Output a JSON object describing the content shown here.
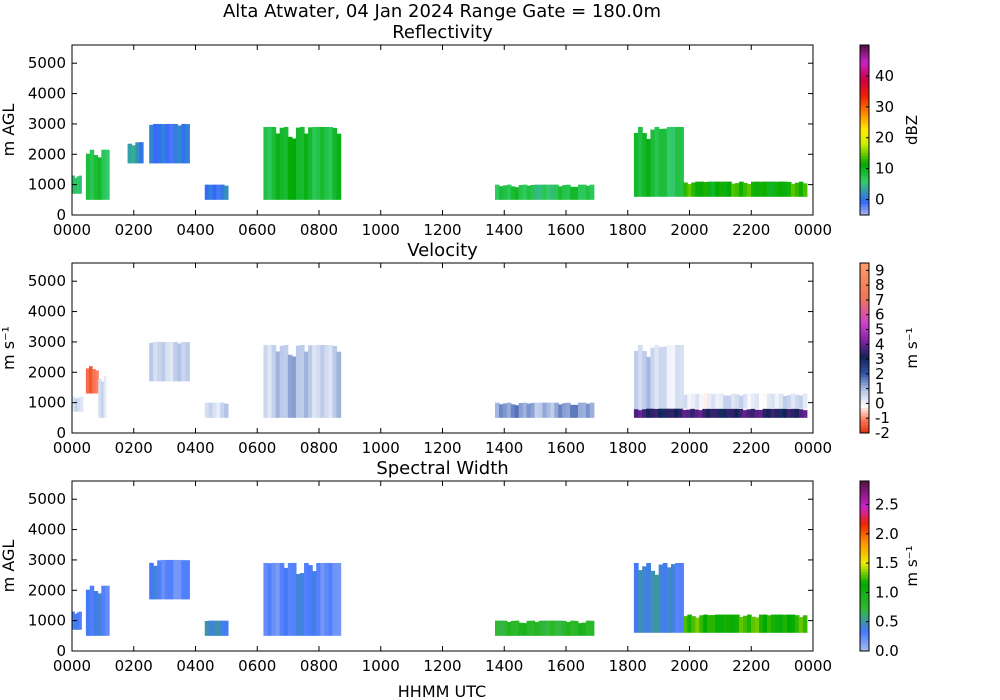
{
  "figure_title": "Alta Atwater, 04 Jan 2024 Range Gate = 180.0m",
  "xlabel": "HHMM UTC",
  "chart_data": [
    {
      "type": "heatmap",
      "title": "Reflectivity",
      "ylabel": "m AGL",
      "xticks": [
        "0000",
        "0200",
        "0400",
        "0600",
        "0800",
        "1000",
        "1200",
        "1400",
        "1600",
        "1800",
        "2000",
        "2200",
        "0000"
      ],
      "yticks": [
        "0",
        "1000",
        "2000",
        "3000",
        "4000",
        "5000"
      ],
      "xlim": [
        0,
        24
      ],
      "ylim": [
        0,
        5600
      ],
      "colorbar": {
        "label": "dBZ",
        "ticks": [
          "0",
          "10",
          "20",
          "30",
          "40"
        ],
        "range": [
          -5,
          50
        ]
      },
      "echo_regions": [
        {
          "t0": 0.0,
          "t1": 0.3,
          "bottom": 700,
          "top": 1300,
          "value": 5
        },
        {
          "t0": 0.45,
          "t1": 1.2,
          "bottom": 500,
          "top": 2150,
          "value": 7
        },
        {
          "t0": 1.8,
          "t1": 2.3,
          "bottom": 1700,
          "top": 2400,
          "value": 2
        },
        {
          "t0": 2.5,
          "t1": 3.8,
          "bottom": 1700,
          "top": 3000,
          "value": 1
        },
        {
          "t0": 4.3,
          "t1": 5.05,
          "bottom": 500,
          "top": 1000,
          "value": 1
        },
        {
          "t0": 6.2,
          "t1": 8.7,
          "bottom": 500,
          "top": 2900,
          "value": 9
        },
        {
          "t0": 13.7,
          "t1": 16.9,
          "bottom": 500,
          "top": 1000,
          "value": 7
        },
        {
          "t0": 18.2,
          "t1": 19.8,
          "bottom": 600,
          "top": 2900,
          "value": 8
        },
        {
          "t0": 19.8,
          "t1": 23.8,
          "bottom": 600,
          "top": 1100,
          "value": 12
        }
      ]
    },
    {
      "type": "heatmap",
      "title": "Velocity",
      "ylabel": "m s⁻¹",
      "xticks": [
        "0000",
        "0200",
        "0400",
        "0600",
        "0800",
        "1000",
        "1200",
        "1400",
        "1600",
        "1800",
        "2000",
        "2200",
        "0000"
      ],
      "yticks": [
        "0",
        "1000",
        "2000",
        "3000",
        "4000",
        "5000"
      ],
      "xlim": [
        0,
        24
      ],
      "ylim": [
        0,
        5600
      ],
      "colorbar": {
        "label": "m s⁻¹",
        "ticks": [
          "-2",
          "-1",
          "0",
          "1",
          "2",
          "3",
          "4",
          "5",
          "6",
          "7",
          "8",
          "9"
        ],
        "range": [
          -2,
          9.5
        ]
      },
      "echo_regions": [
        {
          "t0": 0.0,
          "t1": 0.35,
          "bottom": 700,
          "top": 1200,
          "value": 0.3
        },
        {
          "t0": 0.45,
          "t1": 0.85,
          "bottom": 1300,
          "top": 2200,
          "value": -1.5
        },
        {
          "t0": 0.85,
          "t1": 1.2,
          "bottom": 500,
          "top": 1900,
          "value": 0.2
        },
        {
          "t0": 2.5,
          "t1": 3.8,
          "bottom": 1700,
          "top": 3000,
          "value": 0.8
        },
        {
          "t0": 4.3,
          "t1": 5.05,
          "bottom": 500,
          "top": 1000,
          "value": 0.7
        },
        {
          "t0": 6.2,
          "t1": 8.7,
          "bottom": 500,
          "top": 2900,
          "value": 0.8
        },
        {
          "t0": 13.7,
          "t1": 16.9,
          "bottom": 500,
          "top": 1000,
          "value": 1.2
        },
        {
          "t0": 18.2,
          "t1": 19.8,
          "bottom": 600,
          "top": 2900,
          "value": 0.5
        },
        {
          "t0": 18.2,
          "t1": 23.8,
          "bottom": 500,
          "top": 800,
          "value": 3.5
        },
        {
          "t0": 19.8,
          "t1": 23.8,
          "bottom": 800,
          "top": 1300,
          "value": 0.3
        }
      ]
    },
    {
      "type": "heatmap",
      "title": "Spectral Width",
      "ylabel": "m AGL",
      "xticks": [
        "0000",
        "0200",
        "0400",
        "0600",
        "0800",
        "1000",
        "1200",
        "1400",
        "1600",
        "1800",
        "2000",
        "2200",
        "0000"
      ],
      "yticks": [
        "0",
        "1000",
        "2000",
        "3000",
        "4000",
        "5000"
      ],
      "xlim": [
        0,
        24
      ],
      "ylim": [
        0,
        5600
      ],
      "colorbar": {
        "label": "m s⁻¹",
        "ticks": [
          "0.0",
          "0.5",
          "1.0",
          "1.5",
          "2.0",
          "2.5"
        ],
        "range": [
          0.0,
          2.9
        ]
      },
      "echo_regions": [
        {
          "t0": 0.0,
          "t1": 0.3,
          "bottom": 700,
          "top": 1300,
          "value": 0.3
        },
        {
          "t0": 0.45,
          "t1": 1.2,
          "bottom": 500,
          "top": 2150,
          "value": 0.3
        },
        {
          "t0": 2.5,
          "t1": 3.8,
          "bottom": 1700,
          "top": 3000,
          "value": 0.3
        },
        {
          "t0": 4.3,
          "t1": 5.05,
          "bottom": 500,
          "top": 1000,
          "value": 0.5
        },
        {
          "t0": 6.2,
          "t1": 8.7,
          "bottom": 500,
          "top": 2900,
          "value": 0.3
        },
        {
          "t0": 13.7,
          "t1": 16.9,
          "bottom": 500,
          "top": 1000,
          "value": 0.8
        },
        {
          "t0": 18.2,
          "t1": 19.8,
          "bottom": 600,
          "top": 2900,
          "value": 0.4
        },
        {
          "t0": 19.8,
          "t1": 23.8,
          "bottom": 600,
          "top": 1200,
          "value": 1.2
        }
      ]
    }
  ]
}
